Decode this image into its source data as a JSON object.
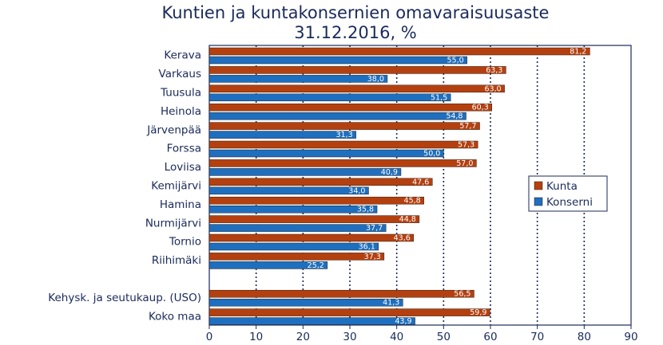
{
  "chart_data": {
    "type": "bar",
    "orientation": "horizontal",
    "title": "Kuntien ja kuntakonsernien omavaraisuusaste",
    "subtitle": "31.12.2016, %",
    "categories": [
      "Kerava",
      "Varkaus",
      "Tuusula",
      "Heinola",
      "Järvenpää",
      "Forssa",
      "Loviisa",
      "Kemijärvi",
      "Hamina",
      "Nurmijärvi",
      "Tornio",
      "Riihimäki",
      "",
      "Kehysk. ja seutukaup. (USO)",
      "Koko maa"
    ],
    "series": [
      {
        "name": "Kunta",
        "color": "#b5400f",
        "values": [
          81.2,
          63.3,
          63.0,
          60.3,
          57.7,
          57.3,
          57.0,
          47.6,
          45.8,
          44.8,
          43.6,
          37.3,
          null,
          56.5,
          59.9
        ],
        "labels": [
          "81,2",
          "63,3",
          "63,0",
          "60,3",
          "57,7",
          "57,3",
          "57,0",
          "47,6",
          "45,8",
          "44,8",
          "43,6",
          "37,3",
          "",
          "56,5",
          "59,9"
        ]
      },
      {
        "name": "Konserni",
        "color": "#1e6fbf",
        "values": [
          55.0,
          38.0,
          51.5,
          54.8,
          31.3,
          50.0,
          40.9,
          34.0,
          35.8,
          37.7,
          36.1,
          25.2,
          null,
          41.3,
          43.9
        ],
        "labels": [
          "55,0",
          "38,0",
          "51,5",
          "54,8",
          "31,3",
          "50,0",
          "40,9",
          "34,0",
          "35,8",
          "37,7",
          "36,1",
          "25,2",
          "",
          "41,3",
          "43,9"
        ]
      }
    ],
    "xlim": [
      0,
      90
    ],
    "xticks": [
      "0",
      "10",
      "20",
      "30",
      "40",
      "50",
      "60",
      "70",
      "80",
      "90"
    ],
    "grid": "vertical dotted",
    "legend_position": "right"
  }
}
